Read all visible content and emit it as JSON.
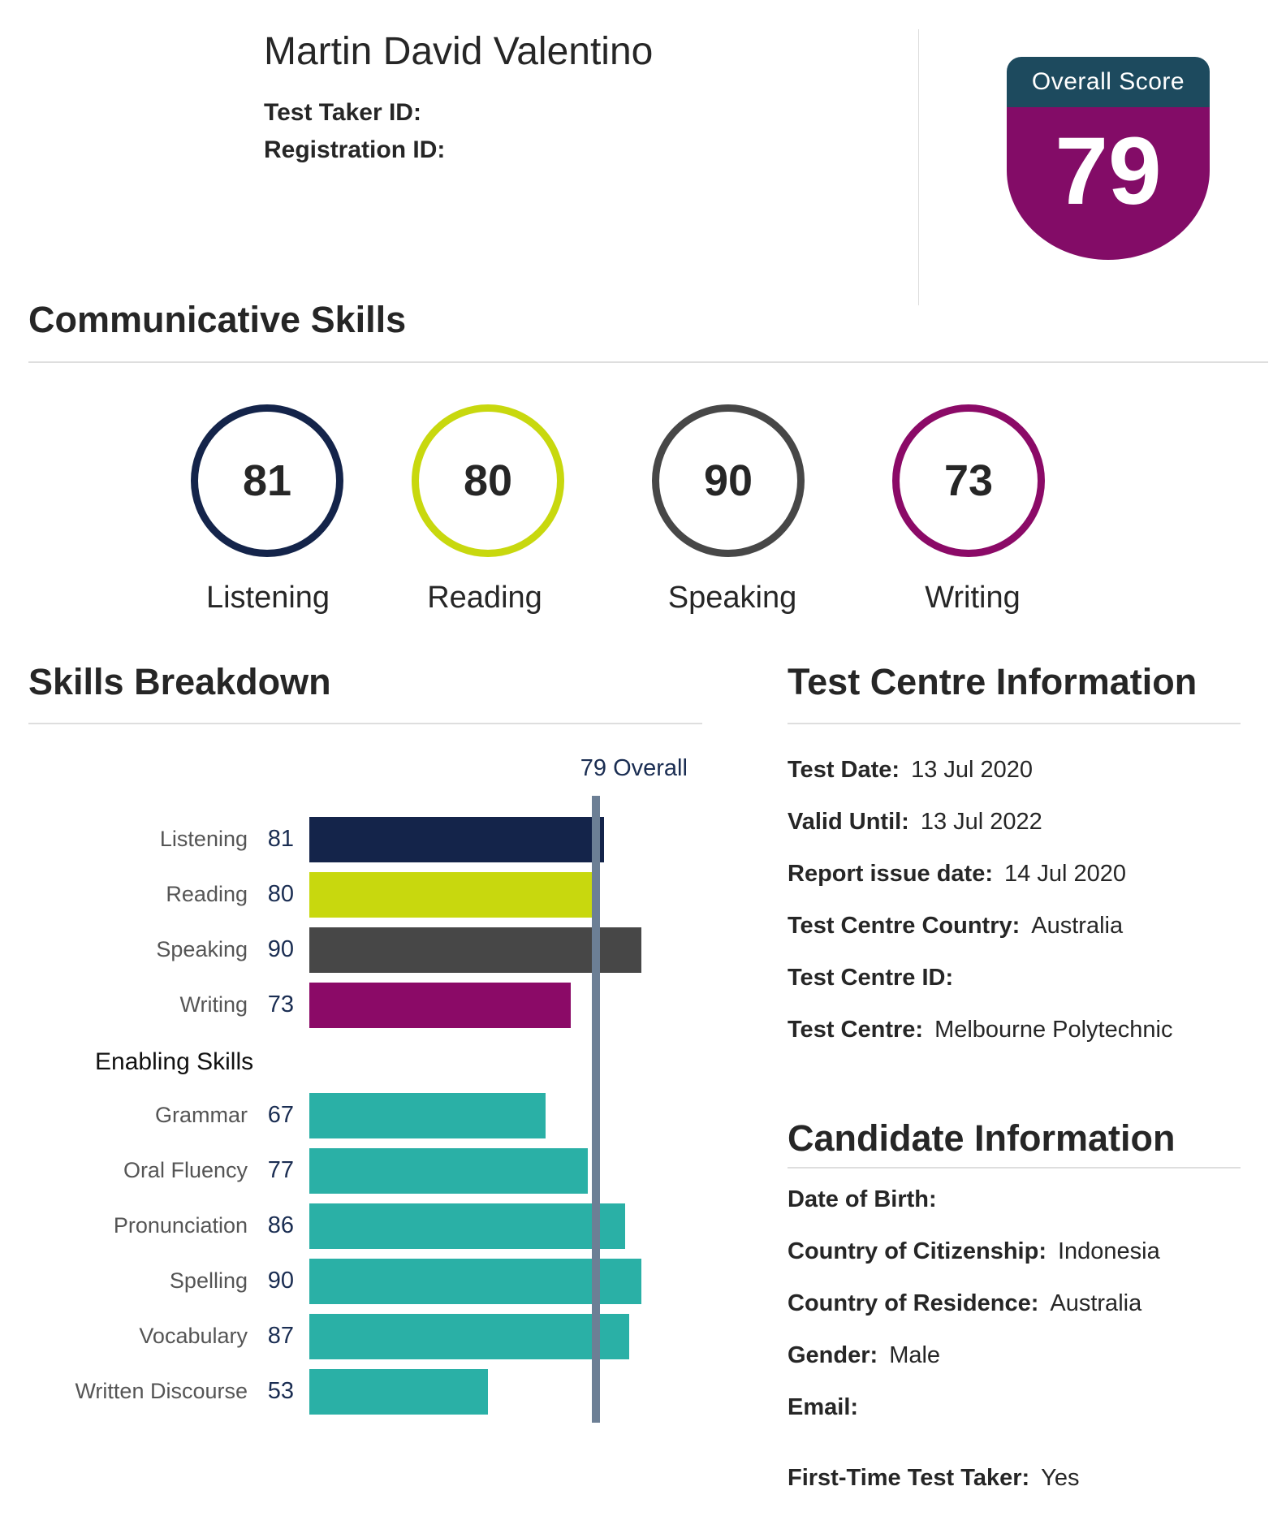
{
  "header": {
    "name": "Martin David Valentino",
    "test_taker_id_label": "Test Taker ID:",
    "registration_id_label": "Registration ID:"
  },
  "overall": {
    "label": "Overall Score",
    "score": "79"
  },
  "communicative": {
    "title": "Communicative Skills",
    "skills": [
      {
        "label": "Listening",
        "score": "81",
        "color": "#14244a"
      },
      {
        "label": "Reading",
        "score": "80",
        "color": "#c8d80e"
      },
      {
        "label": "Speaking",
        "score": "90",
        "color": "#474747"
      },
      {
        "label": "Writing",
        "score": "73",
        "color": "#8b0a67"
      }
    ]
  },
  "breakdown": {
    "title": "Skills Breakdown",
    "overall_label": "79 Overall",
    "enabling_title": "Enabling Skills"
  },
  "chart_data": {
    "type": "bar",
    "orientation": "horizontal",
    "overall": 79,
    "xlim": [
      10,
      90
    ],
    "categories": [
      "Listening",
      "Reading",
      "Speaking",
      "Writing",
      "Grammar",
      "Oral Fluency",
      "Pronunciation",
      "Spelling",
      "Vocabulary",
      "Written Discourse"
    ],
    "values": [
      81,
      80,
      90,
      73,
      67,
      77,
      86,
      90,
      87,
      53
    ],
    "colors": [
      "#14244a",
      "#c8d80e",
      "#474747",
      "#8b0a67",
      "#2ab0a6",
      "#2ab0a6",
      "#2ab0a6",
      "#2ab0a6",
      "#2ab0a6",
      "#2ab0a6"
    ],
    "groups": [
      "communicative",
      "communicative",
      "communicative",
      "communicative",
      "enabling",
      "enabling",
      "enabling",
      "enabling",
      "enabling",
      "enabling"
    ]
  },
  "test_centre": {
    "title": "Test Centre Information",
    "rows": [
      {
        "key": "Test Date:",
        "value": "13 Jul 2020"
      },
      {
        "key": "Valid Until:",
        "value": "13 Jul 2022"
      },
      {
        "key": "Report issue date:",
        "value": "14 Jul 2020"
      },
      {
        "key": "Test Centre Country:",
        "value": "Australia"
      },
      {
        "key": "Test Centre ID:",
        "value": ""
      },
      {
        "key": "Test Centre:",
        "value": "Melbourne Polytechnic"
      }
    ]
  },
  "candidate": {
    "title": "Candidate Information",
    "rows": [
      {
        "key": "Date of Birth:",
        "value": ""
      },
      {
        "key": "Country of Citizenship:",
        "value": "Indonesia"
      },
      {
        "key": "Country of Residence:",
        "value": "Australia"
      },
      {
        "key": "Gender:",
        "value": "Male"
      },
      {
        "key": "Email:",
        "value": ""
      }
    ],
    "first_time_label": "First-Time Test Taker:",
    "first_time_value": "Yes"
  }
}
